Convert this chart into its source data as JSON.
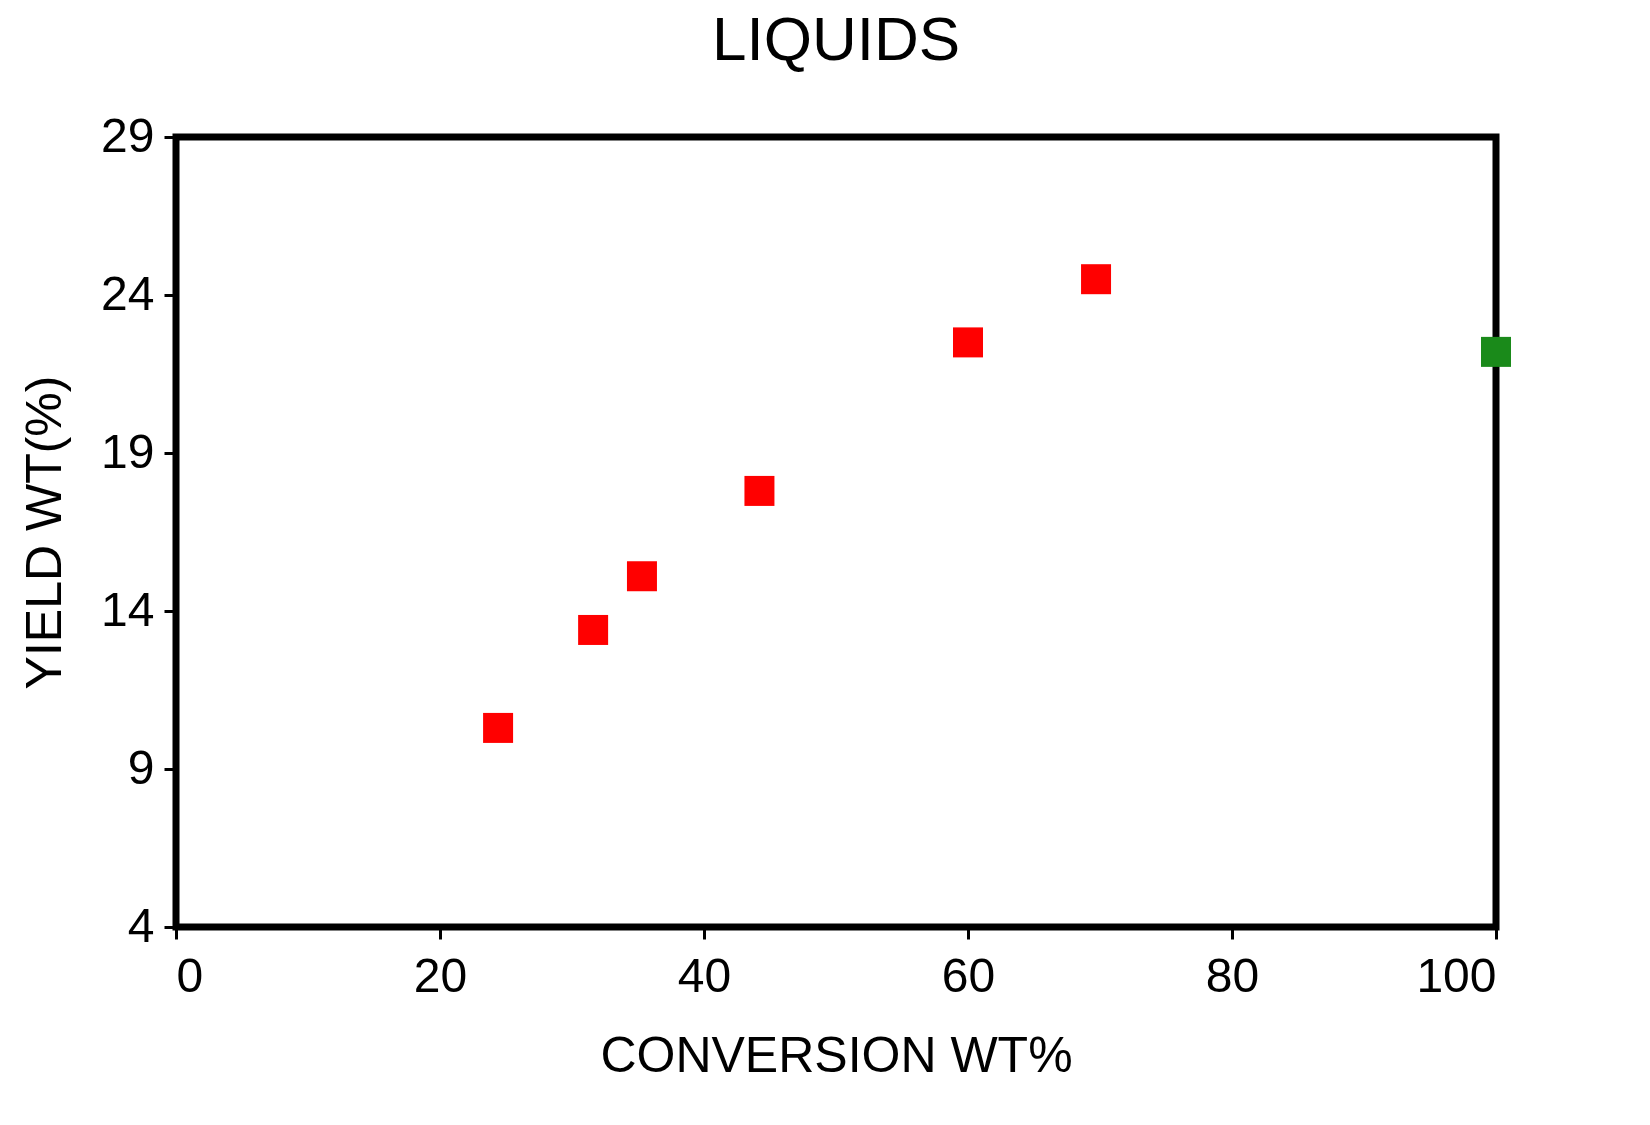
{
  "chart_data": {
    "type": "scatter",
    "title": "LIQUIDS",
    "xlabel": "CONVERSION WT%",
    "ylabel": "YIELD WT(%)",
    "series": [
      {
        "color": "#ff0000",
        "x": [
          24.4,
          31.6,
          35.3,
          44.2,
          60.0,
          69.7
        ],
        "values": [
          10.3,
          13.4,
          15.1,
          17.8,
          22.5,
          24.5
        ]
      },
      {
        "color": "#1a8a1a",
        "x": [
          100
        ],
        "values": [
          22.2
        ]
      }
    ],
    "xlim": [
      0,
      100
    ],
    "xticks": [
      0,
      20,
      40,
      60,
      80,
      100
    ],
    "ylim": [
      4,
      29
    ],
    "yticks": [
      4,
      9,
      14,
      19,
      24,
      29
    ],
    "grid": false,
    "marker": "square",
    "legend": false
  }
}
